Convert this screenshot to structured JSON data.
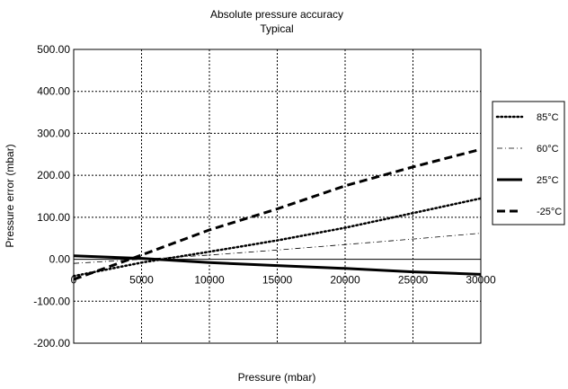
{
  "chart_data": {
    "type": "line",
    "title": "Absolute pressure accuracy",
    "subtitle": "Typical",
    "xlabel": "Pressure (mbar)",
    "ylabel": "Pressure error (mbar)",
    "xlim": [
      0,
      30000
    ],
    "ylim": [
      -200,
      500
    ],
    "xticks": [
      "0",
      "5000",
      "10000",
      "15000",
      "20000",
      "25000",
      "30000"
    ],
    "yticks": [
      "500.00",
      "400.00",
      "300.00",
      "200.00",
      "100.00",
      "0.00",
      "-100.00",
      "-200.00"
    ],
    "grid": "dashed",
    "legend_position": "right",
    "series": [
      {
        "name": "85°C",
        "style": "dotted",
        "x": [
          0,
          5000,
          10000,
          15000,
          20000,
          25000,
          30000
        ],
        "y": [
          -40,
          -8,
          18,
          45,
          75,
          110,
          145
        ]
      },
      {
        "name": "60°C",
        "style": "dash-dot",
        "x": [
          0,
          5000,
          10000,
          15000,
          20000,
          25000,
          30000
        ],
        "y": [
          -10,
          0,
          10,
          22,
          35,
          48,
          62
        ]
      },
      {
        "name": "25°C",
        "style": "solid",
        "x": [
          0,
          5000,
          10000,
          15000,
          20000,
          25000,
          30000
        ],
        "y": [
          8,
          2,
          -8,
          -15,
          -22,
          -30,
          -36
        ]
      },
      {
        "name": "-25°C",
        "style": "dashed",
        "x": [
          0,
          5000,
          10000,
          15000,
          20000,
          25000,
          30000
        ],
        "y": [
          -48,
          10,
          70,
          120,
          175,
          220,
          262
        ]
      }
    ]
  }
}
